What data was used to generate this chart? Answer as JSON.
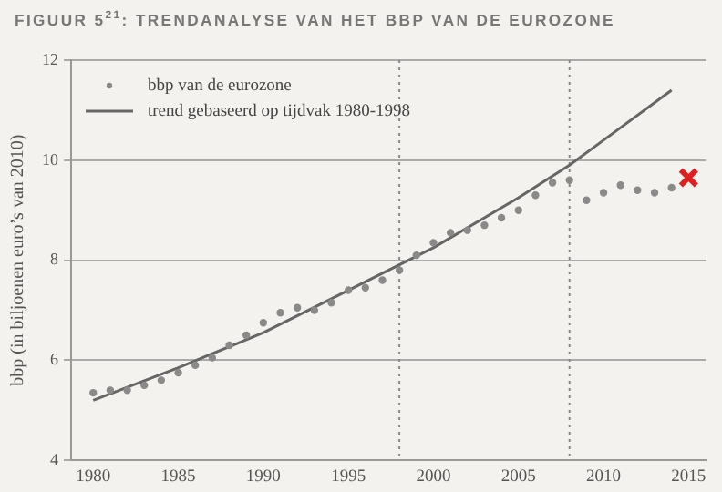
{
  "chart_data": {
    "type": "scatter",
    "title": "FIGUUR 5$^{21}$: TRENDANALYSE VAN HET BBP VAN DE EUROZONE",
    "ylabel": "bbp (in biljoenen euro’s van 2010)",
    "xlim": [
      1978.7,
      2016
    ],
    "xticks": [
      1980,
      1985,
      1990,
      1995,
      2000,
      2005,
      2010,
      2015
    ],
    "ylim": [
      4,
      12
    ],
    "yticks": [
      4,
      6,
      8,
      10,
      12
    ],
    "grid": "y",
    "legend": "top left",
    "ref_lines": [
      {
        "axis": "x",
        "value": 1998,
        "line_style": "dotted",
        "color": "#888888"
      },
      {
        "axis": "x",
        "value": 2008,
        "line_style": "dotted",
        "color": "#888888"
      }
    ],
    "series": [
      {
        "name": "bbp van de eurozone",
        "marker": "circle",
        "color": "#8a8a8a",
        "x": [
          1980,
          1981,
          1982,
          1983,
          1984,
          1985,
          1986,
          1987,
          1988,
          1989,
          1990,
          1991,
          1992,
          1993,
          1994,
          1995,
          1996,
          1997,
          1998,
          1999,
          2000,
          2001,
          2002,
          2003,
          2004,
          2005,
          2006,
          2007,
          2008,
          2009,
          2010,
          2011,
          2012,
          2013,
          2014
        ],
        "values": [
          5.35,
          5.4,
          5.4,
          5.5,
          5.6,
          5.75,
          5.9,
          6.05,
          6.3,
          6.5,
          6.75,
          6.95,
          7.05,
          7.0,
          7.15,
          7.4,
          7.45,
          7.6,
          7.8,
          8.1,
          8.35,
          8.55,
          8.6,
          8.7,
          8.85,
          9.0,
          9.3,
          9.55,
          9.6,
          9.2,
          9.35,
          9.5,
          9.4,
          9.35,
          9.45
        ]
      },
      {
        "name": "trend gebaseerd op tijdvak 1980-1998",
        "type": "line",
        "marker": "none",
        "color": "#666666",
        "x": [
          1980,
          1985,
          1990,
          1995,
          2000,
          2005,
          2008,
          2010,
          2014
        ],
        "values": [
          5.2,
          5.85,
          6.55,
          7.4,
          8.25,
          9.25,
          9.9,
          10.4,
          11.4
        ]
      },
      {
        "marker": "cross",
        "color": "#e02020",
        "x": [
          2015
        ],
        "values": [
          9.65
        ]
      }
    ]
  }
}
